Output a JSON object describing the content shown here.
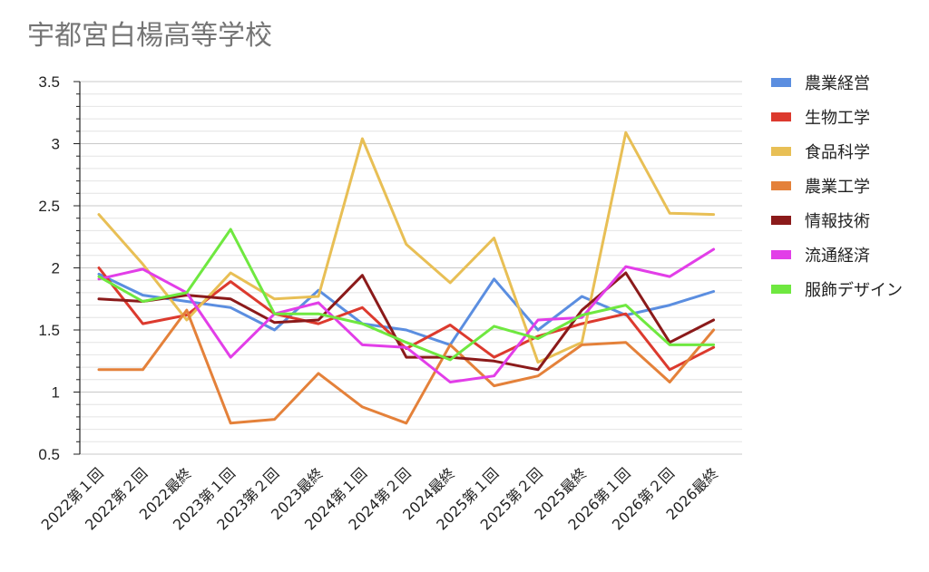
{
  "chart_data": {
    "type": "line",
    "title": "宇都宮白楊高等学校",
    "xlabel": "",
    "ylabel": "",
    "ylim": [
      0.5,
      3.5
    ],
    "yticks": [
      "0.5",
      "1",
      "1.5",
      "2",
      "2.5",
      "3",
      "3.5"
    ],
    "grid": true,
    "legend_position": "right",
    "categories": [
      "2022第１回",
      "2022第２回",
      "2022最終",
      "2023第１回",
      "2023第２回",
      "2023最終",
      "2024第１回",
      "2024第２回",
      "2024最終",
      "2025第１回",
      "2025第２回",
      "2025最終",
      "2026第１回",
      "2026第２回",
      "2026最終"
    ],
    "series": [
      {
        "name": "農業経営",
        "color": "#5b8ee0",
        "values": [
          1.95,
          1.78,
          1.73,
          1.68,
          1.5,
          1.82,
          1.55,
          1.5,
          1.38,
          1.91,
          1.5,
          1.77,
          1.62,
          1.7,
          1.81
        ]
      },
      {
        "name": "生物工学",
        "color": "#dc3a2e",
        "values": [
          2.0,
          1.55,
          1.62,
          1.89,
          1.63,
          1.55,
          1.68,
          1.35,
          1.54,
          1.28,
          1.45,
          1.55,
          1.63,
          1.18,
          1.36
        ]
      },
      {
        "name": "食品科学",
        "color": "#e8bf55",
        "values": [
          2.43,
          2.03,
          1.58,
          1.96,
          1.75,
          1.77,
          3.04,
          2.19,
          1.88,
          2.24,
          1.24,
          1.4,
          3.09,
          2.44,
          2.43
        ]
      },
      {
        "name": "農業工学",
        "color": "#e4813a",
        "values": [
          1.18,
          1.18,
          1.66,
          0.75,
          0.78,
          1.15,
          0.88,
          0.75,
          1.38,
          1.05,
          1.13,
          1.38,
          1.4,
          1.08,
          1.5
        ]
      },
      {
        "name": "情報技術",
        "color": "#8b1a1a",
        "values": [
          1.75,
          1.73,
          1.78,
          1.75,
          1.56,
          1.58,
          1.94,
          1.28,
          1.28,
          1.25,
          1.18,
          1.66,
          1.96,
          1.4,
          1.58
        ]
      },
      {
        "name": "流通経済",
        "color": "#e23ee8",
        "values": [
          1.91,
          1.99,
          1.8,
          1.28,
          1.63,
          1.72,
          1.38,
          1.36,
          1.08,
          1.13,
          1.58,
          1.6,
          2.01,
          1.93,
          2.15
        ]
      },
      {
        "name": "服飾デザイン",
        "color": "#6fe840",
        "values": [
          1.93,
          1.73,
          1.8,
          2.31,
          1.63,
          1.63,
          1.55,
          1.4,
          1.26,
          1.53,
          1.43,
          1.62,
          1.7,
          1.38,
          1.38
        ]
      }
    ]
  }
}
